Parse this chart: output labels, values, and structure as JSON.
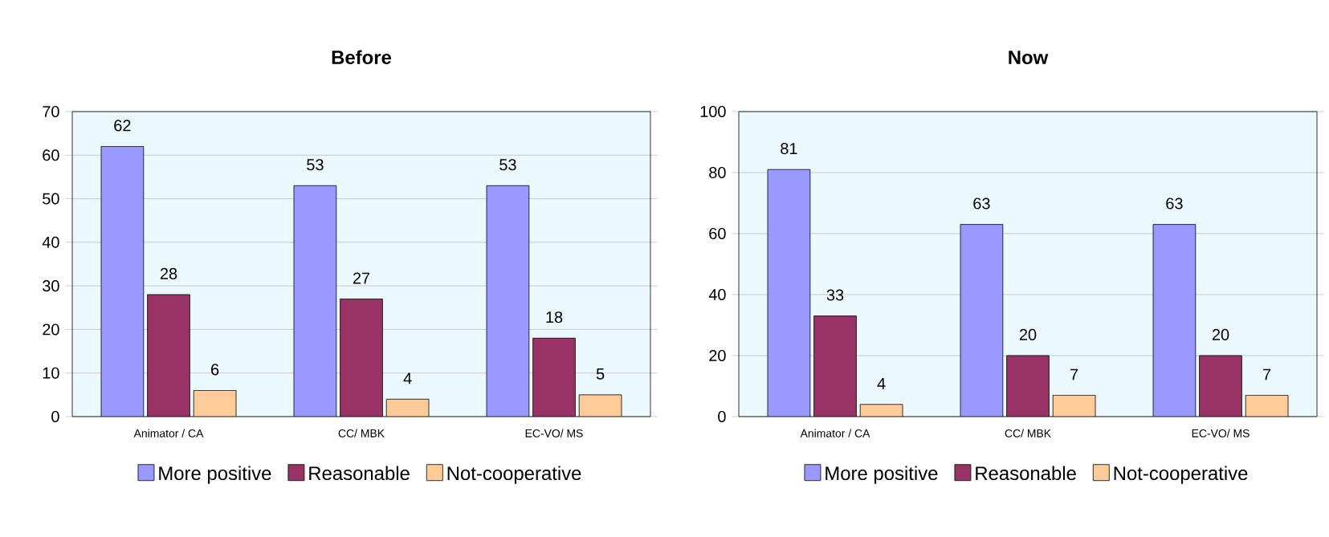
{
  "chart_data": [
    {
      "type": "bar",
      "title": "Before",
      "categories": [
        "Animator / CA",
        "CC/ MBK",
        "EC-VO/ MS"
      ],
      "series": [
        {
          "name": "More positive",
          "color": "#9999ff",
          "values": [
            62,
            53,
            53
          ]
        },
        {
          "name": "Reasonable",
          "color": "#993366",
          "values": [
            28,
            27,
            18
          ]
        },
        {
          "name": "Not-cooperative",
          "color": "#ffcc99",
          "values": [
            6,
            4,
            5
          ]
        }
      ],
      "ylim": [
        0,
        70
      ],
      "yticks": [
        0,
        10,
        20,
        30,
        40,
        50,
        60,
        70
      ],
      "grid": "y",
      "legend": "bottom",
      "data_labels": true
    },
    {
      "type": "bar",
      "title": "Now",
      "categories": [
        "Animator / CA",
        "CC/ MBK",
        "EC-VO/ MS"
      ],
      "series": [
        {
          "name": "More positive",
          "color": "#9999ff",
          "values": [
            81,
            63,
            63
          ]
        },
        {
          "name": "Reasonable",
          "color": "#993366",
          "values": [
            33,
            20,
            20
          ]
        },
        {
          "name": "Not-cooperative",
          "color": "#ffcc99",
          "values": [
            4,
            7,
            7
          ]
        }
      ],
      "ylim": [
        0,
        100
      ],
      "yticks": [
        0,
        20,
        40,
        60,
        80,
        100
      ],
      "grid": "y",
      "legend": "bottom",
      "data_labels": true
    }
  ]
}
